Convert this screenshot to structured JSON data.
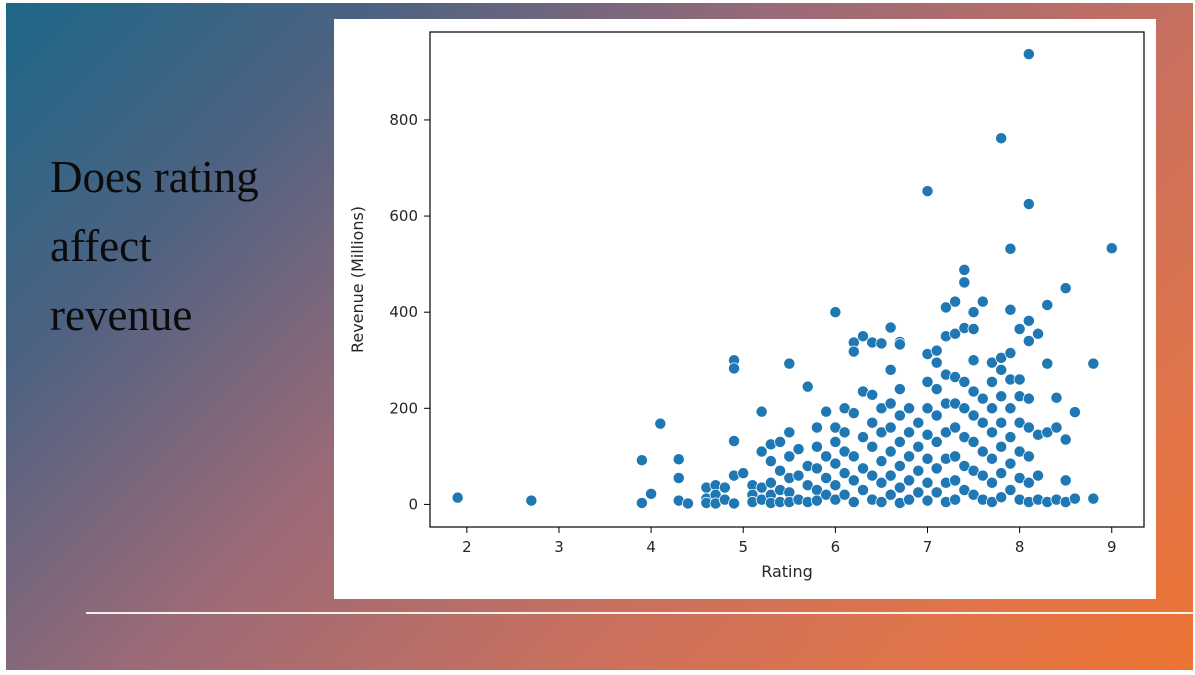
{
  "slide": {
    "title_lines": [
      "Does rating",
      "affect",
      "revenue"
    ]
  },
  "colors": {
    "accent": "#1f77b4",
    "background_start": "#1d6788",
    "background_end": "#ec7434"
  },
  "chart_data": {
    "type": "scatter",
    "title": "",
    "xlabel": "Rating",
    "ylabel": "Revenue (Millions)",
    "xlim": [
      1.6,
      9.35
    ],
    "ylim": [
      -47,
      983
    ],
    "xticks": [
      2,
      3,
      4,
      5,
      6,
      7,
      8,
      9
    ],
    "yticks": [
      0,
      200,
      400,
      600,
      800
    ],
    "grid": false,
    "legend": "none",
    "series": [
      {
        "color": "#1f77b4",
        "points": [
          [
            1.9,
            14
          ],
          [
            2.7,
            8
          ],
          [
            3.9,
            92
          ],
          [
            3.9,
            3
          ],
          [
            4.0,
            22
          ],
          [
            4.1,
            168
          ],
          [
            4.3,
            94
          ],
          [
            4.3,
            55
          ],
          [
            4.3,
            8
          ],
          [
            4.4,
            2
          ],
          [
            4.6,
            35
          ],
          [
            4.6,
            12
          ],
          [
            4.6,
            3
          ],
          [
            4.7,
            40
          ],
          [
            4.7,
            20
          ],
          [
            4.7,
            2
          ],
          [
            4.8,
            35
          ],
          [
            4.8,
            10
          ],
          [
            4.9,
            300
          ],
          [
            4.9,
            283
          ],
          [
            4.9,
            132
          ],
          [
            4.9,
            60
          ],
          [
            4.9,
            2
          ],
          [
            5.0,
            65
          ],
          [
            5.1,
            40
          ],
          [
            5.1,
            20
          ],
          [
            5.1,
            5
          ],
          [
            5.2,
            193
          ],
          [
            5.2,
            110
          ],
          [
            5.2,
            35
          ],
          [
            5.2,
            10
          ],
          [
            5.3,
            125
          ],
          [
            5.3,
            90
          ],
          [
            5.3,
            45
          ],
          [
            5.3,
            20
          ],
          [
            5.3,
            3
          ],
          [
            5.4,
            130
          ],
          [
            5.4,
            70
          ],
          [
            5.4,
            30
          ],
          [
            5.4,
            5
          ],
          [
            5.5,
            293
          ],
          [
            5.5,
            150
          ],
          [
            5.5,
            100
          ],
          [
            5.5,
            55
          ],
          [
            5.5,
            25
          ],
          [
            5.5,
            5
          ],
          [
            5.6,
            115
          ],
          [
            5.6,
            60
          ],
          [
            5.6,
            10
          ],
          [
            5.7,
            245
          ],
          [
            5.7,
            80
          ],
          [
            5.7,
            40
          ],
          [
            5.7,
            5
          ],
          [
            5.8,
            160
          ],
          [
            5.8,
            120
          ],
          [
            5.8,
            75
          ],
          [
            5.8,
            30
          ],
          [
            5.8,
            8
          ],
          [
            5.9,
            193
          ],
          [
            5.9,
            100
          ],
          [
            5.9,
            55
          ],
          [
            5.9,
            20
          ],
          [
            6.0,
            400
          ],
          [
            6.0,
            160
          ],
          [
            6.0,
            130
          ],
          [
            6.0,
            85
          ],
          [
            6.0,
            40
          ],
          [
            6.0,
            10
          ],
          [
            6.1,
            200
          ],
          [
            6.1,
            150
          ],
          [
            6.1,
            110
          ],
          [
            6.1,
            65
          ],
          [
            6.1,
            20
          ],
          [
            6.2,
            337
          ],
          [
            6.2,
            318
          ],
          [
            6.2,
            190
          ],
          [
            6.2,
            100
          ],
          [
            6.2,
            50
          ],
          [
            6.2,
            5
          ],
          [
            6.3,
            350
          ],
          [
            6.3,
            235
          ],
          [
            6.3,
            140
          ],
          [
            6.3,
            75
          ],
          [
            6.3,
            30
          ],
          [
            6.4,
            337
          ],
          [
            6.4,
            228
          ],
          [
            6.4,
            170
          ],
          [
            6.4,
            120
          ],
          [
            6.4,
            60
          ],
          [
            6.4,
            10
          ],
          [
            6.5,
            335
          ],
          [
            6.5,
            200
          ],
          [
            6.5,
            150
          ],
          [
            6.5,
            90
          ],
          [
            6.5,
            45
          ],
          [
            6.5,
            5
          ],
          [
            6.6,
            368
          ],
          [
            6.6,
            280
          ],
          [
            6.6,
            210
          ],
          [
            6.6,
            160
          ],
          [
            6.6,
            110
          ],
          [
            6.6,
            60
          ],
          [
            6.6,
            20
          ],
          [
            6.7,
            338
          ],
          [
            6.7,
            333
          ],
          [
            6.7,
            240
          ],
          [
            6.7,
            185
          ],
          [
            6.7,
            130
          ],
          [
            6.7,
            80
          ],
          [
            6.7,
            35
          ],
          [
            6.7,
            3
          ],
          [
            6.8,
            200
          ],
          [
            6.8,
            150
          ],
          [
            6.8,
            100
          ],
          [
            6.8,
            50
          ],
          [
            6.8,
            10
          ],
          [
            6.9,
            170
          ],
          [
            6.9,
            120
          ],
          [
            6.9,
            70
          ],
          [
            6.9,
            25
          ],
          [
            7.0,
            652
          ],
          [
            7.0,
            313
          ],
          [
            7.0,
            255
          ],
          [
            7.0,
            200
          ],
          [
            7.0,
            145
          ],
          [
            7.0,
            95
          ],
          [
            7.0,
            45
          ],
          [
            7.0,
            8
          ],
          [
            7.1,
            320
          ],
          [
            7.1,
            295
          ],
          [
            7.1,
            240
          ],
          [
            7.1,
            185
          ],
          [
            7.1,
            130
          ],
          [
            7.1,
            75
          ],
          [
            7.1,
            25
          ],
          [
            7.2,
            410
          ],
          [
            7.2,
            350
          ],
          [
            7.2,
            270
          ],
          [
            7.2,
            210
          ],
          [
            7.2,
            150
          ],
          [
            7.2,
            95
          ],
          [
            7.2,
            45
          ],
          [
            7.2,
            5
          ],
          [
            7.3,
            422
          ],
          [
            7.3,
            355
          ],
          [
            7.3,
            265
          ],
          [
            7.3,
            210
          ],
          [
            7.3,
            160
          ],
          [
            7.3,
            100
          ],
          [
            7.3,
            50
          ],
          [
            7.3,
            10
          ],
          [
            7.4,
            488
          ],
          [
            7.4,
            462
          ],
          [
            7.4,
            367
          ],
          [
            7.4,
            255
          ],
          [
            7.4,
            200
          ],
          [
            7.4,
            140
          ],
          [
            7.4,
            80
          ],
          [
            7.4,
            30
          ],
          [
            7.5,
            400
          ],
          [
            7.5,
            365
          ],
          [
            7.5,
            300
          ],
          [
            7.5,
            235
          ],
          [
            7.5,
            185
          ],
          [
            7.5,
            130
          ],
          [
            7.5,
            70
          ],
          [
            7.5,
            20
          ],
          [
            7.6,
            422
          ],
          [
            7.6,
            220
          ],
          [
            7.6,
            170
          ],
          [
            7.6,
            110
          ],
          [
            7.6,
            60
          ],
          [
            7.6,
            10
          ],
          [
            7.7,
            295
          ],
          [
            7.7,
            255
          ],
          [
            7.7,
            200
          ],
          [
            7.7,
            150
          ],
          [
            7.7,
            95
          ],
          [
            7.7,
            45
          ],
          [
            7.7,
            5
          ],
          [
            7.8,
            762
          ],
          [
            7.8,
            305
          ],
          [
            7.8,
            280
          ],
          [
            7.8,
            225
          ],
          [
            7.8,
            170
          ],
          [
            7.8,
            120
          ],
          [
            7.8,
            65
          ],
          [
            7.8,
            15
          ],
          [
            7.9,
            532
          ],
          [
            7.9,
            405
          ],
          [
            7.9,
            315
          ],
          [
            7.9,
            260
          ],
          [
            7.9,
            200
          ],
          [
            7.9,
            140
          ],
          [
            7.9,
            85
          ],
          [
            7.9,
            30
          ],
          [
            8.0,
            365
          ],
          [
            8.0,
            260
          ],
          [
            8.0,
            225
          ],
          [
            8.0,
            170
          ],
          [
            8.0,
            110
          ],
          [
            8.0,
            55
          ],
          [
            8.0,
            10
          ],
          [
            8.1,
            937
          ],
          [
            8.1,
            625
          ],
          [
            8.1,
            382
          ],
          [
            8.1,
            340
          ],
          [
            8.1,
            220
          ],
          [
            8.1,
            160
          ],
          [
            8.1,
            100
          ],
          [
            8.1,
            45
          ],
          [
            8.1,
            5
          ],
          [
            8.2,
            355
          ],
          [
            8.2,
            145
          ],
          [
            8.2,
            60
          ],
          [
            8.2,
            10
          ],
          [
            8.3,
            415
          ],
          [
            8.3,
            293
          ],
          [
            8.3,
            150
          ],
          [
            8.3,
            5
          ],
          [
            8.4,
            222
          ],
          [
            8.4,
            160
          ],
          [
            8.4,
            10
          ],
          [
            8.5,
            450
          ],
          [
            8.5,
            135
          ],
          [
            8.5,
            50
          ],
          [
            8.5,
            5
          ],
          [
            8.6,
            192
          ],
          [
            8.6,
            12
          ],
          [
            8.8,
            293
          ],
          [
            8.8,
            12
          ],
          [
            9.0,
            533
          ]
        ]
      }
    ]
  }
}
